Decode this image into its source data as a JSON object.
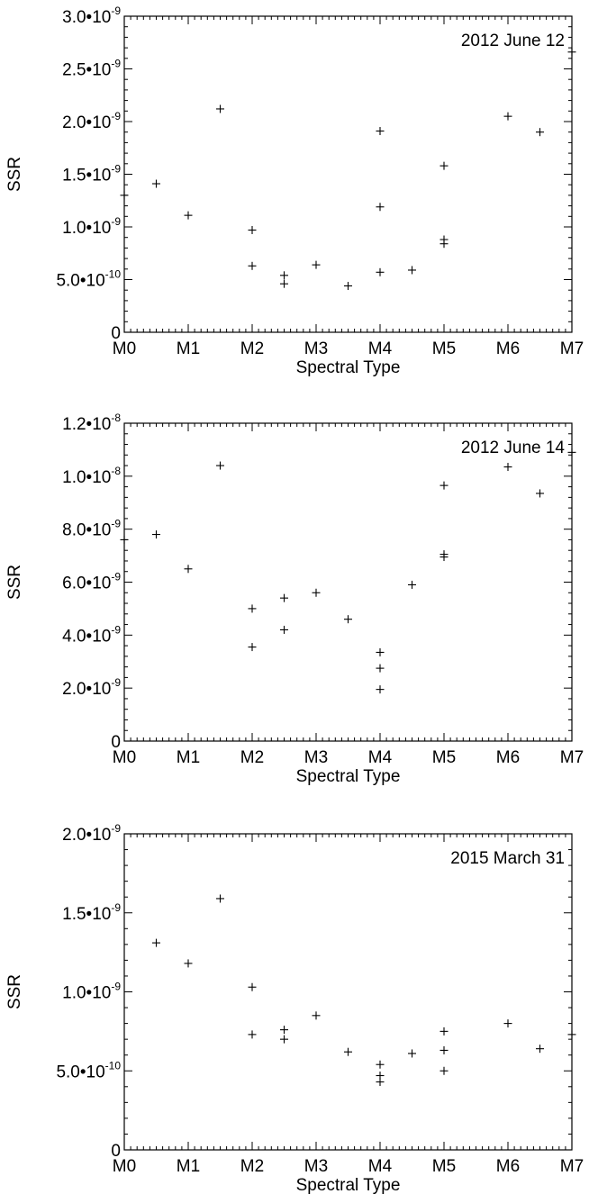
{
  "chart_data": [
    {
      "type": "scatter",
      "annotation": "2012 June 12",
      "xlabel": "Spectral Type",
      "ylabel": "SSR",
      "x_tick_labels": [
        "M0",
        "M1",
        "M2",
        "M3",
        "M4",
        "M5",
        "M6",
        "M7"
      ],
      "y_ticks": [
        {
          "value": 0,
          "base": "0",
          "exp": ""
        },
        {
          "value": 5e-10,
          "base": "5.0•10",
          "exp": "-10"
        },
        {
          "value": 1e-09,
          "base": "1.0•10",
          "exp": "-9"
        },
        {
          "value": 1.5e-09,
          "base": "1.5•10",
          "exp": "-9"
        },
        {
          "value": 2e-09,
          "base": "2.0•10",
          "exp": "-9"
        },
        {
          "value": 2.5e-09,
          "base": "2.5•10",
          "exp": "-9"
        },
        {
          "value": 3e-09,
          "base": "3.0•10",
          "exp": "-9"
        }
      ],
      "xlim": [
        0,
        7
      ],
      "ylim": [
        0,
        3e-09
      ],
      "points": [
        {
          "x": 0,
          "y": 1.3e-09
        },
        {
          "x": 0.5,
          "y": 1.41e-09
        },
        {
          "x": 1,
          "y": 1.11e-09
        },
        {
          "x": 1.5,
          "y": 2.12e-09
        },
        {
          "x": 2,
          "y": 9.7e-10
        },
        {
          "x": 2,
          "y": 6.3e-10
        },
        {
          "x": 2.5,
          "y": 5.4e-10
        },
        {
          "x": 2.5,
          "y": 4.6e-10
        },
        {
          "x": 3,
          "y": 6.4e-10
        },
        {
          "x": 3.5,
          "y": 4.4e-10
        },
        {
          "x": 4,
          "y": 1.91e-09
        },
        {
          "x": 4,
          "y": 1.19e-09
        },
        {
          "x": 4,
          "y": 5.7e-10
        },
        {
          "x": 4.5,
          "y": 5.9e-10
        },
        {
          "x": 5,
          "y": 1.58e-09
        },
        {
          "x": 5,
          "y": 8.8e-10
        },
        {
          "x": 5,
          "y": 8.4e-10
        },
        {
          "x": 6,
          "y": 2.05e-09
        },
        {
          "x": 6.5,
          "y": 1.9e-09
        },
        {
          "x": 7,
          "y": 2.66e-09
        }
      ]
    },
    {
      "type": "scatter",
      "annotation": "2012 June 14",
      "xlabel": "Spectral Type",
      "ylabel": "SSR",
      "x_tick_labels": [
        "M0",
        "M1",
        "M2",
        "M3",
        "M4",
        "M5",
        "M6",
        "M7"
      ],
      "y_ticks": [
        {
          "value": 0,
          "base": "0",
          "exp": ""
        },
        {
          "value": 2e-09,
          "base": "2.0•10",
          "exp": "-9"
        },
        {
          "value": 4e-09,
          "base": "4.0•10",
          "exp": "-9"
        },
        {
          "value": 6e-09,
          "base": "6.0•10",
          "exp": "-9"
        },
        {
          "value": 8e-09,
          "base": "8.0•10",
          "exp": "-9"
        },
        {
          "value": 1e-08,
          "base": "1.0•10",
          "exp": "-8"
        },
        {
          "value": 1.2e-08,
          "base": "1.2•10",
          "exp": "-8"
        }
      ],
      "xlim": [
        0,
        7
      ],
      "ylim": [
        0,
        1.2e-08
      ],
      "points": [
        {
          "x": 0,
          "y": 7.6e-09
        },
        {
          "x": 0.5,
          "y": 7.8e-09
        },
        {
          "x": 1,
          "y": 6.5e-09
        },
        {
          "x": 1.5,
          "y": 1.04e-08
        },
        {
          "x": 2,
          "y": 5e-09
        },
        {
          "x": 2,
          "y": 3.55e-09
        },
        {
          "x": 2.5,
          "y": 5.4e-09
        },
        {
          "x": 2.5,
          "y": 4.2e-09
        },
        {
          "x": 3,
          "y": 5.6e-09
        },
        {
          "x": 3.5,
          "y": 4.6e-09
        },
        {
          "x": 4,
          "y": 3.35e-09
        },
        {
          "x": 4,
          "y": 2.75e-09
        },
        {
          "x": 4,
          "y": 1.95e-09
        },
        {
          "x": 4.5,
          "y": 5.9e-09
        },
        {
          "x": 5,
          "y": 9.65e-09
        },
        {
          "x": 5,
          "y": 7.05e-09
        },
        {
          "x": 5,
          "y": 6.95e-09
        },
        {
          "x": 6,
          "y": 1.035e-08
        },
        {
          "x": 6.5,
          "y": 9.35e-09
        },
        {
          "x": 7,
          "y": 1.09e-08
        }
      ]
    },
    {
      "type": "scatter",
      "annotation": "2015 March 31",
      "xlabel": "Spectral Type",
      "ylabel": "SSR",
      "x_tick_labels": [
        "M0",
        "M1",
        "M2",
        "M3",
        "M4",
        "M5",
        "M6",
        "M7"
      ],
      "y_ticks": [
        {
          "value": 0,
          "base": "0",
          "exp": ""
        },
        {
          "value": 5e-10,
          "base": "5.0•10",
          "exp": "-10"
        },
        {
          "value": 1e-09,
          "base": "1.0•10",
          "exp": "-9"
        },
        {
          "value": 1.5e-09,
          "base": "1.5•10",
          "exp": "-9"
        },
        {
          "value": 2e-09,
          "base": "2.0•10",
          "exp": "-9"
        }
      ],
      "xlim": [
        0,
        7
      ],
      "ylim": [
        0,
        2e-09
      ],
      "points": [
        {
          "x": 0.5,
          "y": 1.31e-09
        },
        {
          "x": 1,
          "y": 1.18e-09
        },
        {
          "x": 1.5,
          "y": 1.59e-09
        },
        {
          "x": 2,
          "y": 1.03e-09
        },
        {
          "x": 2,
          "y": 7.3e-10
        },
        {
          "x": 2.5,
          "y": 7.6e-10
        },
        {
          "x": 2.5,
          "y": 7e-10
        },
        {
          "x": 3,
          "y": 8.5e-10
        },
        {
          "x": 3.5,
          "y": 6.2e-10
        },
        {
          "x": 4,
          "y": 5.4e-10
        },
        {
          "x": 4,
          "y": 4.7e-10
        },
        {
          "x": 4,
          "y": 4.3e-10
        },
        {
          "x": 4.5,
          "y": 6.1e-10
        },
        {
          "x": 5,
          "y": 7.5e-10
        },
        {
          "x": 5,
          "y": 6.3e-10
        },
        {
          "x": 5,
          "y": 5e-10
        },
        {
          "x": 6,
          "y": 8e-10
        },
        {
          "x": 6.5,
          "y": 6.4e-10
        },
        {
          "x": 7,
          "y": 7.3e-10
        }
      ]
    }
  ]
}
